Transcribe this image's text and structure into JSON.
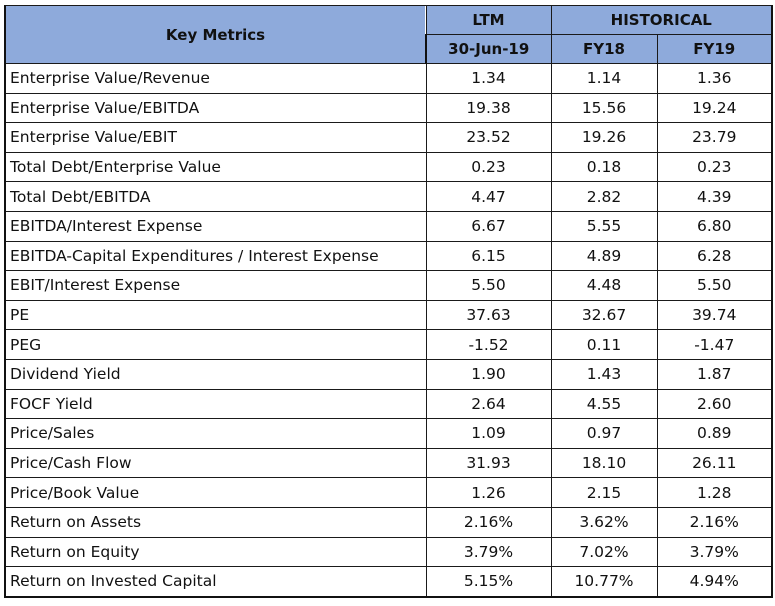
{
  "header": {
    "key_metrics": "Key Metrics",
    "ltm": "LTM",
    "historical": "HISTORICAL",
    "ltm_date": "30-Jun-19",
    "fy18": "FY18",
    "fy19": "FY19"
  },
  "header_color": "#8eaadb",
  "rows": [
    {
      "label": "Enterprise Value/Revenue",
      "ltm": "1.34",
      "fy18": "1.14",
      "fy19": "1.36"
    },
    {
      "label": "Enterprise Value/EBITDA",
      "ltm": "19.38",
      "fy18": "15.56",
      "fy19": "19.24"
    },
    {
      "label": "Enterprise Value/EBIT",
      "ltm": "23.52",
      "fy18": "19.26",
      "fy19": "23.79"
    },
    {
      "label": "Total Debt/Enterprise Value",
      "ltm": "0.23",
      "fy18": "0.18",
      "fy19": "0.23"
    },
    {
      "label": "Total Debt/EBITDA",
      "ltm": "4.47",
      "fy18": "2.82",
      "fy19": "4.39"
    },
    {
      "label": "EBITDA/Interest Expense",
      "ltm": "6.67",
      "fy18": "5.55",
      "fy19": "6.80"
    },
    {
      "label": "EBITDA-Capital Expenditures / Interest Expense",
      "ltm": "6.15",
      "fy18": "4.89",
      "fy19": "6.28"
    },
    {
      "label": "EBIT/Interest Expense",
      "ltm": "5.50",
      "fy18": "4.48",
      "fy19": "5.50"
    },
    {
      "label": "PE",
      "ltm": "37.63",
      "fy18": "32.67",
      "fy19": "39.74"
    },
    {
      "label": "PEG",
      "ltm": "-1.52",
      "fy18": "0.11",
      "fy19": "-1.47"
    },
    {
      "label": "Dividend Yield",
      "ltm": "1.90",
      "fy18": "1.43",
      "fy19": "1.87"
    },
    {
      "label": "FOCF Yield",
      "ltm": "2.64",
      "fy18": "4.55",
      "fy19": "2.60"
    },
    {
      "label": "Price/Sales",
      "ltm": "1.09",
      "fy18": "0.97",
      "fy19": "0.89"
    },
    {
      "label": "Price/Cash Flow",
      "ltm": "31.93",
      "fy18": "18.10",
      "fy19": "26.11"
    },
    {
      "label": "Price/Book Value",
      "ltm": "1.26",
      "fy18": "2.15",
      "fy19": "1.28"
    },
    {
      "label": "Return on Assets",
      "ltm": "2.16%",
      "fy18": "3.62%",
      "fy19": "2.16%"
    },
    {
      "label": "Return on Equity",
      "ltm": "3.79%",
      "fy18": "7.02%",
      "fy19": "3.79%"
    },
    {
      "label": "Return on Invested Capital",
      "ltm": "5.15%",
      "fy18": "10.77%",
      "fy19": "4.94%"
    }
  ]
}
